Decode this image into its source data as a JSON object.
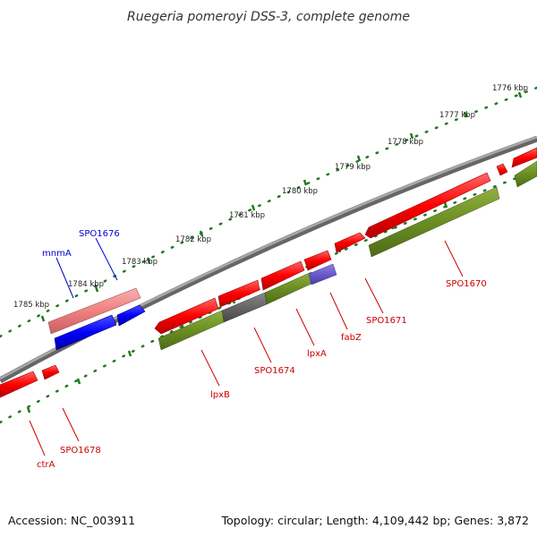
{
  "title": "Ruegeria pomeroyi DSS-3, complete genome",
  "footer": {
    "accession": "Accession: NC_003911",
    "summary": "Topology: circular; Length: 4,109,442 bp; Genes: 3,872"
  },
  "colors": {
    "backbone": "#7f7f7f",
    "ticks": "#1f7a1f",
    "forward_gene": "#ff0000",
    "forward_gene_highlight": "#f08080",
    "reverse_gene": "#0000ff",
    "operon_band": "#6b8e23",
    "operon_band_dark": "#666666",
    "operon_band_violet": "#6a5acd",
    "label_red": "#cc0000",
    "label_blue": "#0000cc"
  },
  "scale_labels": [
    "1776 kbp",
    "1777 kbp",
    "1778 kbp",
    "1779 kbp",
    "1780 kbp",
    "1781 kbp",
    "1782 kbp",
    "1783 kbp",
    "1784 kbp",
    "1785 kbp"
  ],
  "gene_labels_top": [
    {
      "text": "SPO1676",
      "color": "blue"
    },
    {
      "text": "mnmA",
      "color": "blue"
    }
  ],
  "gene_labels_bottom": [
    {
      "text": "SPO1670",
      "color": "red"
    },
    {
      "text": "SPO1671",
      "color": "red"
    },
    {
      "text": "fabZ",
      "color": "red"
    },
    {
      "text": "lpxA",
      "color": "red"
    },
    {
      "text": "SPO1674",
      "color": "red"
    },
    {
      "text": "lpxB",
      "color": "red"
    },
    {
      "text": "SPO1678",
      "color": "red"
    },
    {
      "text": "ctrA",
      "color": "red"
    }
  ]
}
